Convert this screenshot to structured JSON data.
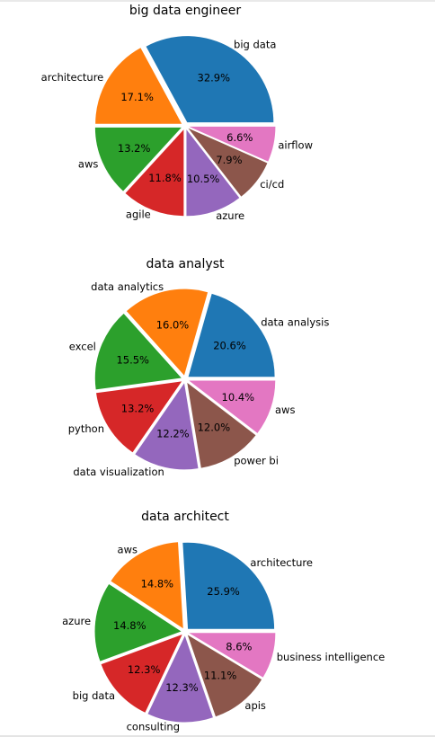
{
  "chart_data": [
    {
      "type": "pie",
      "title": "big data engineer",
      "categories": [
        "big data",
        "architecture",
        "aws",
        "agile",
        "azure",
        "ci/cd",
        "airflow"
      ],
      "values": [
        32.9,
        17.1,
        13.2,
        11.8,
        10.5,
        7.9,
        6.6
      ],
      "labels_pct": [
        "32.9%",
        "17.1%",
        "13.2%",
        "11.8%",
        "10.5%",
        "7.9%",
        "6.6%"
      ]
    },
    {
      "type": "pie",
      "title": "data analyst",
      "categories": [
        "data analysis",
        "data analytics",
        "excel",
        "python",
        "data visualization",
        "power bi",
        "aws"
      ],
      "values": [
        20.6,
        16.0,
        15.5,
        13.2,
        12.2,
        12.0,
        10.4
      ],
      "labels_pct": [
        "20.6%",
        "16.0%",
        "15.5%",
        "13.2%",
        "12.2%",
        "12.0%",
        "10.4%"
      ]
    },
    {
      "type": "pie",
      "title": "data architect",
      "categories": [
        "architecture",
        "aws",
        "azure",
        "big data",
        "consulting",
        "apis",
        "business intelligence"
      ],
      "values": [
        25.9,
        14.8,
        14.8,
        12.3,
        12.3,
        11.1,
        8.6
      ],
      "labels_pct": [
        "25.9%",
        "14.8%",
        "14.8%",
        "12.3%",
        "12.3%",
        "11.1%",
        "8.6%"
      ]
    }
  ],
  "colors": [
    "#1f77b4",
    "#ff7f0e",
    "#2ca02c",
    "#d62728",
    "#9467bd",
    "#8c564b",
    "#e377c2"
  ]
}
